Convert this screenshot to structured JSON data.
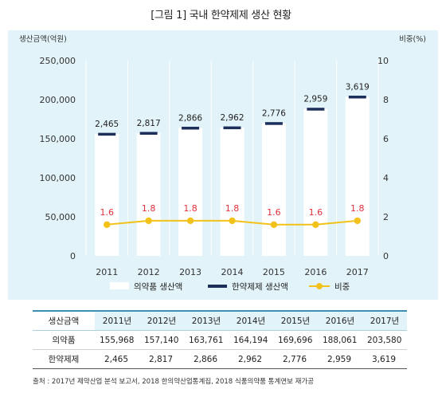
{
  "figure_title": "[그림 1] 국내 한약제제 생산 현황",
  "chart_data": {
    "type": "bar",
    "title": "",
    "categories": [
      "2011",
      "2012",
      "2013",
      "2014",
      "2015",
      "2016",
      "2017"
    ],
    "y_left_label": "생산금액(억원)",
    "y_right_label": "비중(%)",
    "y_left_ticks": [
      "0",
      "50,000",
      "100,000",
      "150,000",
      "200,000",
      "250,000"
    ],
    "y_right_ticks": [
      "0",
      "2",
      "4",
      "6",
      "8",
      "10"
    ],
    "ylim_left": [
      0,
      250000
    ],
    "ylim_right": [
      0,
      10
    ],
    "series": [
      {
        "name": "의약품 생산액",
        "kind": "bar",
        "axis": "left",
        "color": "#ffffff",
        "values": [
          155968,
          157140,
          163761,
          164194,
          169696,
          188061,
          203580
        ]
      },
      {
        "name": "한약제제 생산액",
        "kind": "marker",
        "axis": "left",
        "color": "#1c2e5a",
        "values": [
          2465,
          2817,
          2866,
          2962,
          2776,
          2959,
          3619
        ],
        "labels": [
          "2,465",
          "2,817",
          "2,866",
          "2,962",
          "2,776",
          "2,959",
          "3,619"
        ]
      },
      {
        "name": "비중",
        "kind": "line",
        "axis": "right",
        "color": "#f2c21b",
        "values": [
          1.6,
          1.8,
          1.8,
          1.8,
          1.6,
          1.6,
          1.8
        ],
        "labels": [
          "1.6",
          "1.8",
          "1.8",
          "1.8",
          "1.6",
          "1.6",
          "1.8"
        ],
        "label_color": "#e0303a"
      }
    ],
    "legend_position": "bottom",
    "grid": "vertical"
  },
  "table": {
    "header_label": "생산금액",
    "columns": [
      "2011년",
      "2012년",
      "2013년",
      "2014년",
      "2015년",
      "2016년",
      "2017년"
    ],
    "rows": [
      {
        "label": "의약품",
        "values": [
          "155,968",
          "157,140",
          "163,761",
          "164,194",
          "169,696",
          "188,061",
          "203,580"
        ]
      },
      {
        "label": "한약제제",
        "values": [
          "2,465",
          "2,817",
          "2,866",
          "2,962",
          "2,776",
          "2,959",
          "3,619"
        ]
      }
    ]
  },
  "source_note": "출처 : 2017년 제약산업 분석 보고서, 2018 한의약산업통계집, 2018 식품의약품 통계연보 재가공"
}
